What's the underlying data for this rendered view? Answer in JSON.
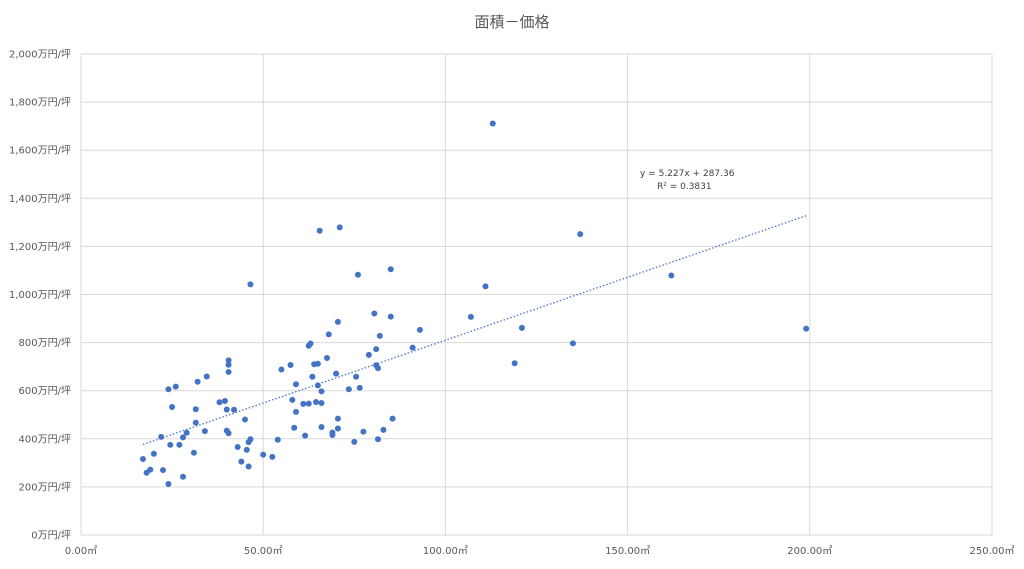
{
  "chart_data": {
    "type": "scatter",
    "title": "面積－価格",
    "x_ticks": [
      "0.00㎡",
      "50.00㎡",
      "100.00㎡",
      "150.00㎡",
      "200.00㎡",
      "250.00㎡"
    ],
    "y_ticks": [
      "0万円/坪",
      "200万円/坪",
      "400万円/坪",
      "600万円/坪",
      "800万円/坪",
      "1,000万円/坪",
      "1,200万円/坪",
      "1,400万円/坪",
      "1,600万円/坪",
      "1,800万円/坪",
      "2,000万円/坪"
    ],
    "xlim": [
      0,
      250
    ],
    "ylim": [
      0,
      2000
    ],
    "grid": "vertical and horizontal",
    "trendline": {
      "type": "linear",
      "slope": 5.227,
      "intercept": 287.36,
      "x_range": [
        17,
        199
      ],
      "equation": "y = 5.227x + 287.36",
      "r_squared": "R² = 0.3831",
      "style": "dotted"
    },
    "marker_color": "#4472c4",
    "trend_color": "#4472c4",
    "points": [
      [
        17,
        316
      ],
      [
        18,
        259
      ],
      [
        19,
        272
      ],
      [
        20,
        338
      ],
      [
        22,
        408
      ],
      [
        22.5,
        270
      ],
      [
        24,
        212
      ],
      [
        24,
        606
      ],
      [
        24.5,
        375
      ],
      [
        25,
        532
      ],
      [
        26,
        617
      ],
      [
        27,
        375
      ],
      [
        28,
        242
      ],
      [
        28,
        406
      ],
      [
        29,
        425
      ],
      [
        31,
        342
      ],
      [
        31.5,
        467
      ],
      [
        31.5,
        523
      ],
      [
        32,
        637
      ],
      [
        34,
        432
      ],
      [
        34.5,
        659
      ],
      [
        38,
        552
      ],
      [
        39.5,
        557
      ],
      [
        40,
        434
      ],
      [
        40,
        522
      ],
      [
        40.5,
        423
      ],
      [
        40.5,
        678
      ],
      [
        40.5,
        708
      ],
      [
        40.5,
        726
      ],
      [
        42,
        521
      ],
      [
        43,
        366
      ],
      [
        44,
        305
      ],
      [
        45,
        480
      ],
      [
        45.5,
        354
      ],
      [
        46,
        386
      ],
      [
        46,
        285
      ],
      [
        46.5,
        398
      ],
      [
        46.5,
        1042
      ],
      [
        50,
        334
      ],
      [
        52.5,
        325
      ],
      [
        54,
        396
      ],
      [
        55,
        688
      ],
      [
        57.5,
        707
      ],
      [
        58,
        562
      ],
      [
        58.5,
        446
      ],
      [
        59,
        512
      ],
      [
        59,
        627
      ],
      [
        61,
        545
      ],
      [
        61.5,
        413
      ],
      [
        62.5,
        546
      ],
      [
        62.5,
        787
      ],
      [
        63,
        796
      ],
      [
        63.5,
        658
      ],
      [
        64,
        710
      ],
      [
        64.5,
        553
      ],
      [
        65,
        622
      ],
      [
        65,
        712
      ],
      [
        65.5,
        1265
      ],
      [
        66,
        449
      ],
      [
        66,
        549
      ],
      [
        66,
        597
      ],
      [
        67.5,
        736
      ],
      [
        68,
        834
      ],
      [
        69,
        426
      ],
      [
        69,
        416
      ],
      [
        70,
        671
      ],
      [
        70.5,
        886
      ],
      [
        70.5,
        484
      ],
      [
        70.5,
        443
      ],
      [
        71,
        1279
      ],
      [
        73.5,
        606
      ],
      [
        75,
        387
      ],
      [
        75.5,
        658
      ],
      [
        76,
        1082
      ],
      [
        76.5,
        612
      ],
      [
        77.5,
        430
      ],
      [
        79,
        749
      ],
      [
        80.5,
        921
      ],
      [
        81,
        773
      ],
      [
        81,
        706
      ],
      [
        81.5,
        398
      ],
      [
        81.5,
        694
      ],
      [
        82,
        828
      ],
      [
        83,
        437
      ],
      [
        85,
        908
      ],
      [
        85,
        1105
      ],
      [
        85.5,
        484
      ],
      [
        91,
        779
      ],
      [
        93,
        853
      ],
      [
        107,
        907
      ],
      [
        111,
        1034
      ],
      [
        113,
        1711
      ],
      [
        119,
        714
      ],
      [
        121,
        861
      ],
      [
        135,
        797
      ],
      [
        137,
        1251
      ],
      [
        162,
        1079
      ],
      [
        199,
        858
      ]
    ]
  }
}
